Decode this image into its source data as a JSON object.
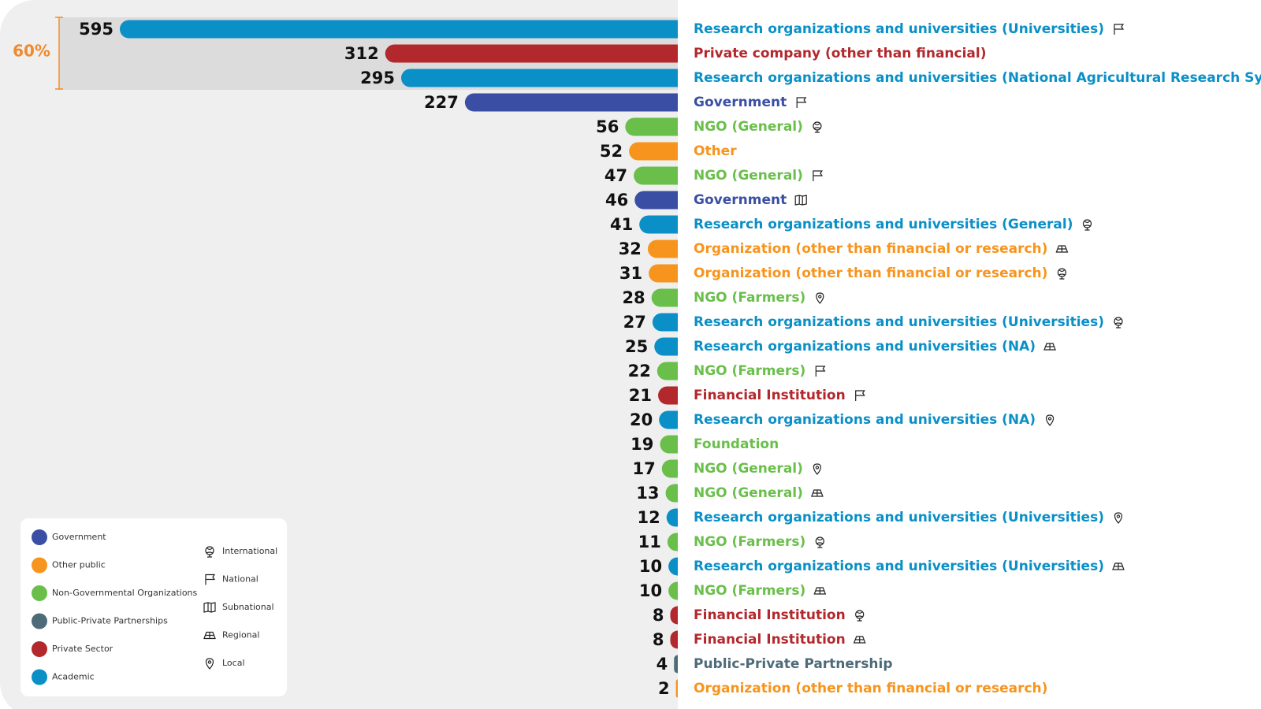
{
  "chart_data": {
    "type": "bar",
    "orientation": "horizontal",
    "categories": [
      "Research organizations and universities (Universities)",
      "Private company (other than financial)",
      "Research organizations and universities (National Agricultural Research Systems)",
      "Government",
      "NGO (General)",
      "Other",
      "NGO (General)",
      "Government",
      "Research organizations and universities (General)",
      "Organization (other than financial or research)",
      "Organization (other than financial or research)",
      "NGO (Farmers)",
      "Research organizations and universities (Universities)",
      "Research organizations and universities (NA)",
      "NGO (Farmers)",
      "Financial Institution",
      "Research organizations and universities (NA)",
      "Foundation",
      "NGO (General)",
      "NGO (General)",
      "Research organizations and universities (Universities)",
      "NGO (Farmers)",
      "Research organizations and universities (Universities)",
      "NGO (Farmers)",
      "Financial Institution",
      "Financial Institution",
      "Public-Private Partnership",
      "Organization (other than financial or research)"
    ],
    "values": [
      595,
      312,
      295,
      227,
      56,
      52,
      47,
      46,
      41,
      32,
      31,
      28,
      27,
      25,
      22,
      21,
      20,
      19,
      17,
      13,
      12,
      11,
      10,
      10,
      8,
      8,
      4,
      2
    ],
    "sectors": [
      "Academic",
      "Private Sector",
      "Academic",
      "Government",
      "Non-Governmental Organizations",
      "Other public",
      "Non-Governmental Organizations",
      "Government",
      "Academic",
      "Other public",
      "Other public",
      "Non-Governmental Organizations",
      "Academic",
      "Academic",
      "Non-Governmental Organizations",
      "Private Sector",
      "Academic",
      "Non-Governmental Organizations",
      "Non-Governmental Organizations",
      "Non-Governmental Organizations",
      "Academic",
      "Non-Governmental Organizations",
      "Academic",
      "Non-Governmental Organizations",
      "Private Sector",
      "Private Sector",
      "Public-Private Partnerships",
      "Other public"
    ],
    "scopes": [
      "National",
      null,
      "National",
      "National",
      "International",
      null,
      "National",
      "Subnational",
      "International",
      "Regional",
      "International",
      "Local",
      "International",
      "Regional",
      "National",
      "National",
      "Local",
      null,
      "Local",
      "Regional",
      "Local",
      "International",
      "Regional",
      "Regional",
      "International",
      "Regional",
      null,
      null
    ],
    "annotation": "60%",
    "legend_sectors": [
      {
        "name": "Government",
        "color": "#3a4ea3"
      },
      {
        "name": "Other public",
        "color": "#f7941d"
      },
      {
        "name": "Non-Governmental Organizations",
        "color": "#6abf4b"
      },
      {
        "name": "Public-Private Partnerships",
        "color": "#4d6b78"
      },
      {
        "name": "Private Sector",
        "color": "#b3282d"
      },
      {
        "name": "Academic",
        "color": "#0a8fc7"
      }
    ],
    "legend_scopes": [
      "International",
      "National",
      "Subnational",
      "Regional",
      "Local"
    ]
  }
}
